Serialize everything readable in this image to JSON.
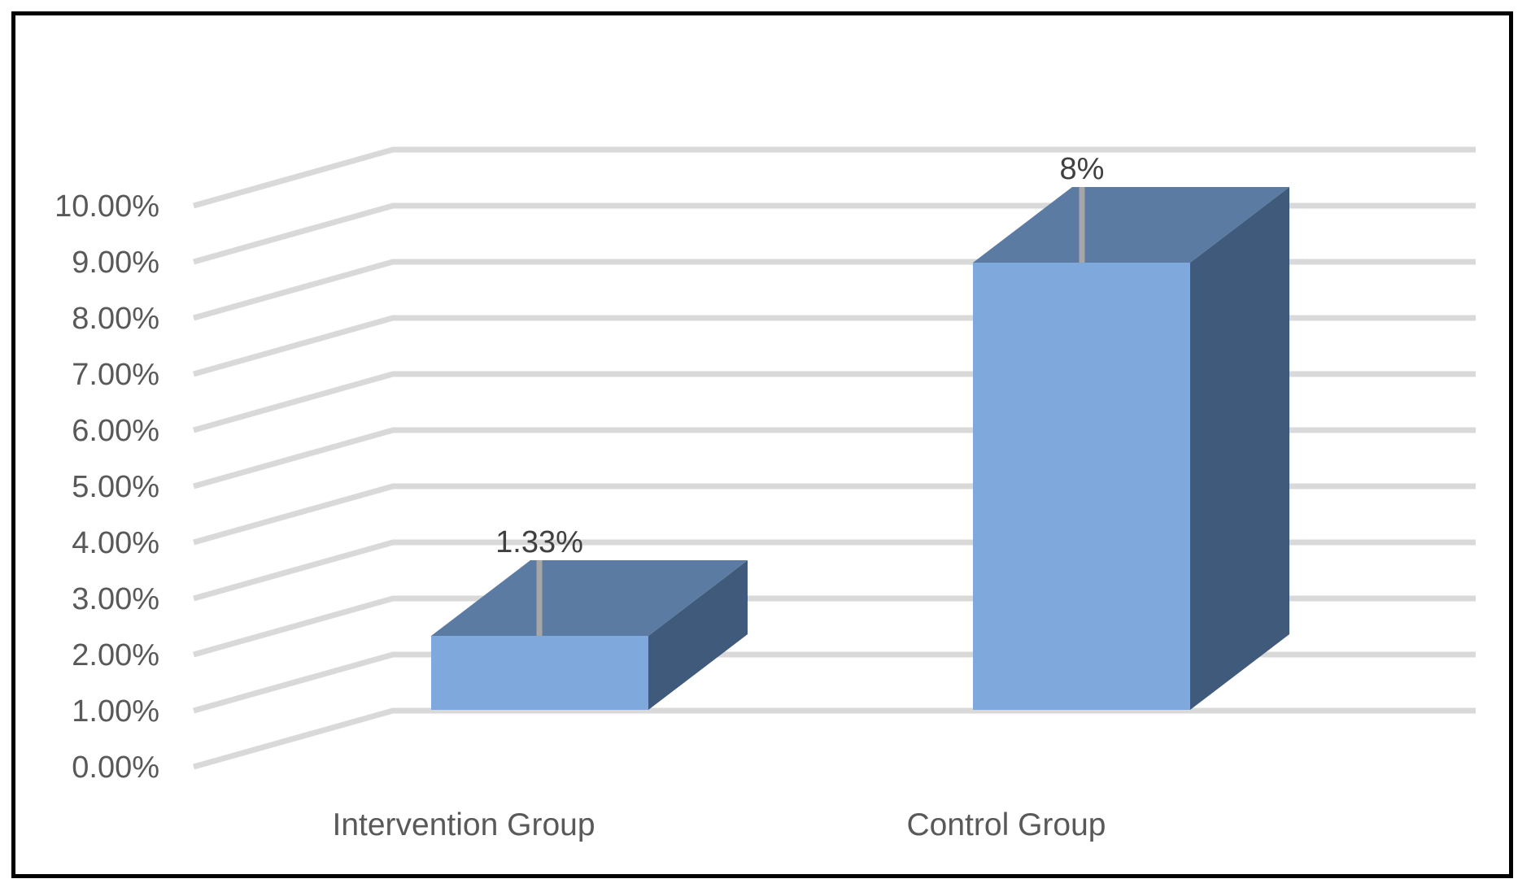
{
  "chart_data": {
    "type": "bar",
    "style": "3d-column",
    "categories": [
      "Intervention Group",
      "Control Group"
    ],
    "values": [
      1.33,
      8
    ],
    "data_labels": [
      "1.33%",
      "8%"
    ],
    "ylim": [
      0,
      10
    ],
    "y_ticks": [
      0,
      1,
      2,
      3,
      4,
      5,
      6,
      7,
      8,
      9,
      10
    ],
    "y_tick_labels": [
      "0.00%",
      "1.00%",
      "2.00%",
      "3.00%",
      "4.00%",
      "5.00%",
      "6.00%",
      "7.00%",
      "8.00%",
      "9.00%",
      "10.00%"
    ],
    "title": "",
    "xlabel": "",
    "ylabel": "",
    "grid": true,
    "legend": "none",
    "colors": {
      "bar_front": "#7FA8DC",
      "bar_top": "#5B7BA3",
      "bar_side": "#3F5A7A",
      "gridline": "#D9D9D9",
      "leader_line": "#A6A6A6",
      "frame": "#000000"
    }
  }
}
